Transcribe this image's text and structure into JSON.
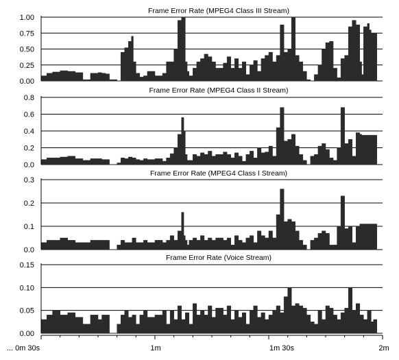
{
  "colors": {
    "area": "#2b2b2b",
    "grid": "#000000",
    "axis": "#000000",
    "background": "#ffffff"
  },
  "x_axis": {
    "tick_labels": [
      "... 0m 30s",
      "1m",
      "1m 30s",
      "2m"
    ],
    "tick_values": [
      30,
      60,
      90,
      120
    ],
    "range": [
      30,
      120
    ]
  },
  "chart_data": [
    {
      "type": "area",
      "title": "Frame Error Rate (MPEG4 Class III Stream)",
      "ylim": [
        0,
        1
      ],
      "yticks": [
        0,
        0.25,
        0.5,
        0.75,
        1
      ],
      "ytick_labels": [
        "0.00",
        "0.25",
        "0.50",
        "0.75",
        "1.00"
      ],
      "grid": true,
      "x": [
        30,
        31.5,
        33,
        35,
        37,
        39,
        41,
        43,
        45,
        46,
        47,
        48,
        50,
        51,
        52,
        53,
        53.8,
        54.3,
        55,
        56,
        57,
        58,
        60,
        62,
        63,
        65,
        66,
        67,
        68,
        68.5,
        69,
        70,
        71,
        72,
        73,
        74,
        75,
        76,
        78,
        79,
        80,
        81,
        82,
        83,
        84,
        85,
        86,
        87,
        88,
        89,
        90,
        91,
        92,
        93,
        94,
        95,
        96,
        97,
        98,
        99,
        100,
        101,
        102,
        103,
        104,
        105,
        106,
        107,
        108,
        109,
        110,
        111,
        112,
        113,
        114,
        114.5,
        115,
        116,
        116.5,
        117,
        117.6
      ],
      "values": [
        0.08,
        0.12,
        0.14,
        0.16,
        0.15,
        0.13,
        0.02,
        0.12,
        0.13,
        0.12,
        0.11,
        0.02,
        0.0,
        0.45,
        0.52,
        0.62,
        0.7,
        0.3,
        0.12,
        0.06,
        0.08,
        0.15,
        0.08,
        0.12,
        0.3,
        0.5,
        0.95,
        1.0,
        0.3,
        0.15,
        0.08,
        0.2,
        0.3,
        0.35,
        0.42,
        0.38,
        0.3,
        0.2,
        0.28,
        0.38,
        0.2,
        0.35,
        0.2,
        0.3,
        0.1,
        0.25,
        0.32,
        0.15,
        0.35,
        0.4,
        0.45,
        0.3,
        0.4,
        0.88,
        0.45,
        0.5,
        1.0,
        0.4,
        0.3,
        0.15,
        0.02,
        0.0,
        0.1,
        0.25,
        0.5,
        0.6,
        0.62,
        0.2,
        0.05,
        0.35,
        0.4,
        0.85,
        0.95,
        0.88,
        0.3,
        0.1,
        0.85,
        0.9,
        0.8,
        0.75,
        0.75
      ]
    },
    {
      "type": "area",
      "title": "Frame Error Rate (MPEG4 Class II Stream)",
      "ylim": [
        0,
        0.8
      ],
      "yticks": [
        0,
        0.2,
        0.4,
        0.6,
        0.8
      ],
      "ytick_labels": [
        "0.0",
        "0.2",
        "0.4",
        "0.6",
        "0.8"
      ],
      "grid": true,
      "x": [
        30,
        31.5,
        33,
        35,
        37,
        39,
        41,
        43,
        45,
        46,
        47,
        48,
        50,
        51,
        52,
        53,
        54,
        55,
        56,
        57,
        58,
        60,
        62,
        63,
        64,
        65,
        66,
        67,
        67.6,
        68,
        68.5,
        69,
        70,
        71,
        72,
        73,
        74,
        75,
        76,
        78,
        79,
        80,
        81,
        82,
        83,
        84,
        85,
        86,
        87,
        88,
        89,
        90,
        91,
        92,
        93,
        94,
        95,
        96,
        97,
        98,
        99,
        100,
        101,
        102,
        103,
        104,
        105,
        106,
        107,
        108,
        109,
        110,
        111,
        112,
        113,
        114,
        114.5,
        115,
        116,
        117,
        117.6
      ],
      "values": [
        0.06,
        0.08,
        0.08,
        0.09,
        0.1,
        0.07,
        0.05,
        0.07,
        0.07,
        0.06,
        0.06,
        0.0,
        0.02,
        0.08,
        0.07,
        0.09,
        0.08,
        0.06,
        0.05,
        0.07,
        0.06,
        0.07,
        0.04,
        0.08,
        0.13,
        0.2,
        0.36,
        0.56,
        0.4,
        0.12,
        0.05,
        0.05,
        0.12,
        0.1,
        0.14,
        0.12,
        0.16,
        0.1,
        0.12,
        0.15,
        0.12,
        0.08,
        0.14,
        0.1,
        0.04,
        0.12,
        0.16,
        0.08,
        0.2,
        0.14,
        0.15,
        0.22,
        0.1,
        0.44,
        0.68,
        0.28,
        0.3,
        0.36,
        0.22,
        0.12,
        0.05,
        0.0,
        0.1,
        0.12,
        0.22,
        0.25,
        0.18,
        0.08,
        0.05,
        0.2,
        0.68,
        0.25,
        0.3,
        0.1,
        0.38,
        0.36,
        0.35,
        0.35,
        0.35,
        0.35,
        0.35
      ]
    },
    {
      "type": "area",
      "title": "Frame Error Rate (MPEG4 Class I Stream)",
      "ylim": [
        0,
        0.3
      ],
      "yticks": [
        0,
        0.1,
        0.2,
        0.3
      ],
      "ytick_labels": [
        "0.0",
        "0.1",
        "0.2",
        "0.3"
      ],
      "grid": true,
      "x": [
        30,
        31.5,
        33,
        35,
        37,
        39,
        41,
        43,
        45,
        46,
        47,
        48,
        50,
        51,
        52,
        53,
        54,
        55,
        56,
        57,
        58,
        60,
        62,
        63,
        64,
        65,
        66,
        67,
        67.6,
        68,
        68.5,
        69,
        70,
        71,
        72,
        73,
        74,
        75,
        76,
        78,
        79,
        80,
        81,
        82,
        83,
        84,
        85,
        86,
        87,
        88,
        89,
        90,
        91,
        92,
        93,
        94,
        95,
        96,
        97,
        98,
        99,
        100,
        101,
        102,
        103,
        104,
        105,
        106,
        107,
        108,
        109,
        110,
        111,
        112,
        113,
        114,
        115,
        116,
        117,
        117.6
      ],
      "values": [
        0.03,
        0.04,
        0.04,
        0.05,
        0.04,
        0.03,
        0.03,
        0.04,
        0.04,
        0.04,
        0.04,
        0.0,
        0.02,
        0.04,
        0.03,
        0.03,
        0.05,
        0.03,
        0.03,
        0.04,
        0.03,
        0.04,
        0.03,
        0.04,
        0.06,
        0.04,
        0.08,
        0.16,
        0.06,
        0.04,
        0.02,
        0.04,
        0.05,
        0.04,
        0.06,
        0.04,
        0.05,
        0.04,
        0.05,
        0.04,
        0.05,
        0.02,
        0.06,
        0.04,
        0.03,
        0.05,
        0.06,
        0.03,
        0.08,
        0.06,
        0.05,
        0.08,
        0.05,
        0.15,
        0.26,
        0.12,
        0.13,
        0.12,
        0.08,
        0.04,
        0.02,
        0.0,
        0.04,
        0.05,
        0.07,
        0.08,
        0.07,
        0.02,
        0.02,
        0.1,
        0.23,
        0.09,
        0.1,
        0.03,
        0.1,
        0.11,
        0.11,
        0.11,
        0.11,
        0.11
      ]
    },
    {
      "type": "area",
      "title": "Frame Error Rate (Voice Stream)",
      "ylim": [
        0,
        0.15
      ],
      "yticks": [
        0,
        0.05,
        0.1,
        0.15
      ],
      "ytick_labels": [
        "0.00",
        "0.05",
        "0.10",
        "0.15"
      ],
      "grid": true,
      "x": [
        30,
        31.5,
        33,
        35,
        37,
        39,
        41,
        43,
        45,
        46,
        47,
        48,
        50,
        51,
        52,
        53,
        54,
        55,
        56,
        57,
        58,
        60,
        62,
        63,
        64,
        65,
        66,
        67,
        68,
        69,
        70,
        71,
        72,
        73,
        74,
        75,
        76,
        78,
        79,
        80,
        81,
        82,
        83,
        84,
        85,
        86,
        87,
        88,
        89,
        90,
        91,
        92,
        93,
        94,
        95,
        96,
        97,
        98,
        99,
        100,
        101,
        102,
        103,
        104,
        105,
        106,
        107,
        108,
        109,
        110,
        111,
        112,
        113,
        114,
        115,
        116,
        117,
        117.6
      ],
      "values": [
        0.03,
        0.04,
        0.05,
        0.04,
        0.045,
        0.035,
        0.02,
        0.04,
        0.03,
        0.04,
        0.04,
        0.0,
        0.02,
        0.04,
        0.05,
        0.035,
        0.04,
        0.02,
        0.04,
        0.05,
        0.035,
        0.04,
        0.05,
        0.02,
        0.05,
        0.03,
        0.06,
        0.03,
        0.045,
        0.02,
        0.065,
        0.04,
        0.05,
        0.04,
        0.06,
        0.035,
        0.055,
        0.04,
        0.06,
        0.03,
        0.05,
        0.035,
        0.045,
        0.02,
        0.05,
        0.06,
        0.035,
        0.045,
        0.03,
        0.04,
        0.05,
        0.06,
        0.045,
        0.08,
        0.1,
        0.06,
        0.065,
        0.06,
        0.055,
        0.04,
        0.025,
        0.02,
        0.05,
        0.03,
        0.06,
        0.055,
        0.04,
        0.03,
        0.045,
        0.055,
        0.1,
        0.05,
        0.065,
        0.04,
        0.03,
        0.05,
        0.025,
        0.03
      ]
    }
  ]
}
